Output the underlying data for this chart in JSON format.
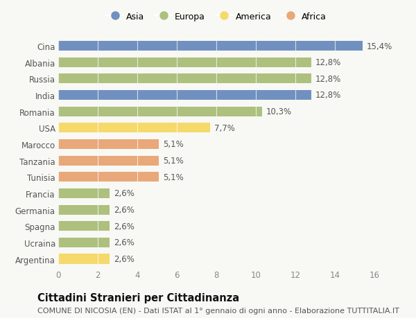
{
  "countries": [
    "Cina",
    "Albania",
    "Russia",
    "India",
    "Romania",
    "USA",
    "Marocco",
    "Tanzania",
    "Tunisia",
    "Francia",
    "Germania",
    "Spagna",
    "Ucraina",
    "Argentina"
  ],
  "values": [
    15.4,
    12.8,
    12.8,
    12.8,
    10.3,
    7.7,
    5.1,
    5.1,
    5.1,
    2.6,
    2.6,
    2.6,
    2.6,
    2.6
  ],
  "labels": [
    "15,4%",
    "12,8%",
    "12,8%",
    "12,8%",
    "10,3%",
    "7,7%",
    "5,1%",
    "5,1%",
    "5,1%",
    "2,6%",
    "2,6%",
    "2,6%",
    "2,6%",
    "2,6%"
  ],
  "continents": [
    "Asia",
    "Europa",
    "Europa",
    "Asia",
    "Europa",
    "America",
    "Africa",
    "Africa",
    "Africa",
    "Europa",
    "Europa",
    "Europa",
    "Europa",
    "America"
  ],
  "continent_colors": {
    "Asia": "#7090c0",
    "Europa": "#adc07e",
    "America": "#f5d96a",
    "Africa": "#e8a87a"
  },
  "legend_order": [
    "Asia",
    "Europa",
    "America",
    "Africa"
  ],
  "xlim": [
    0,
    16
  ],
  "xticks": [
    0,
    2,
    4,
    6,
    8,
    10,
    12,
    14,
    16
  ],
  "title": "Cittadini Stranieri per Cittadinanza",
  "subtitle": "COMUNE DI NICOSIA (EN) - Dati ISTAT al 1° gennaio di ogni anno - Elaborazione TUTTITALIA.IT",
  "bg_color": "#f8f8f5",
  "grid_color": "#e0e0e0",
  "bar_height": 0.6,
  "label_fontsize": 8.5,
  "title_fontsize": 10.5,
  "subtitle_fontsize": 8.0
}
